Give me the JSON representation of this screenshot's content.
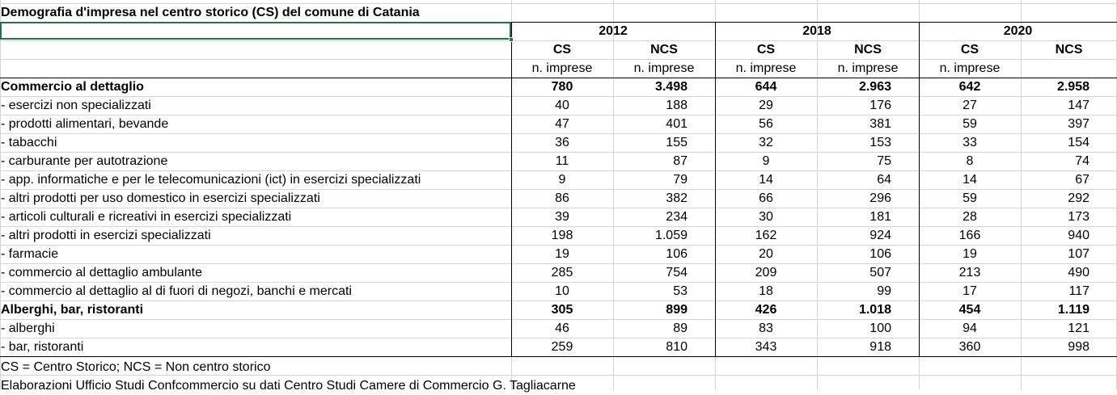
{
  "title": "Demografia d'impresa nel centro storico (CS) del comune di Catania",
  "years": [
    "2012",
    "2018",
    "2020"
  ],
  "col_headers": [
    "CS",
    "NCS",
    "CS",
    "NCS",
    "CS",
    "NCS"
  ],
  "col_units": [
    "n. imprese",
    "n. imprese",
    "n. imprese",
    "n. imprese",
    "n. imprese",
    ""
  ],
  "rows": [
    {
      "label": "Commercio al dettaglio",
      "bold": true,
      "values": [
        "780",
        "3.498",
        "644",
        "2.963",
        "642",
        "2.958"
      ]
    },
    {
      "label": "- esercizi non specializzati",
      "bold": false,
      "values": [
        "40",
        "188",
        "29",
        "176",
        "27",
        "147"
      ]
    },
    {
      "label": "- prodotti alimentari, bevande",
      "bold": false,
      "values": [
        "47",
        "401",
        "56",
        "381",
        "59",
        "397"
      ]
    },
    {
      "label": "- tabacchi",
      "bold": false,
      "values": [
        "36",
        "155",
        "32",
        "153",
        "33",
        "154"
      ]
    },
    {
      "label": "- carburante per autotrazione",
      "bold": false,
      "values": [
        "11",
        "87",
        "9",
        "75",
        "8",
        "74"
      ]
    },
    {
      "label": "- app. informatiche e per le telecomunicazioni (ict) in esercizi specializzati",
      "bold": false,
      "values": [
        "9",
        "79",
        "14",
        "64",
        "14",
        "67"
      ]
    },
    {
      "label": "- altri prodotti per uso domestico in esercizi specializzati",
      "bold": false,
      "values": [
        "86",
        "382",
        "66",
        "296",
        "59",
        "292"
      ]
    },
    {
      "label": "- articoli culturali e ricreativi in esercizi specializzati",
      "bold": false,
      "values": [
        "39",
        "234",
        "30",
        "181",
        "28",
        "173"
      ]
    },
    {
      "label": "- altri prodotti in esercizi specializzati",
      "bold": false,
      "values": [
        "198",
        "1.059",
        "162",
        "924",
        "166",
        "940"
      ]
    },
    {
      "label": "- farmacie",
      "bold": false,
      "values": [
        "19",
        "106",
        "20",
        "106",
        "19",
        "107"
      ]
    },
    {
      "label": "- commercio al dettaglio ambulante",
      "bold": false,
      "values": [
        "285",
        "754",
        "209",
        "507",
        "213",
        "490"
      ]
    },
    {
      "label": "- commercio al dettaglio al di fuori di negozi, banchi e mercati",
      "bold": false,
      "values": [
        "10",
        "53",
        "18",
        "99",
        "17",
        "117"
      ]
    },
    {
      "label": "Alberghi, bar, ristoranti",
      "bold": true,
      "values": [
        "305",
        "899",
        "426",
        "1.018",
        "454",
        "1.119"
      ]
    },
    {
      "label": "- alberghi",
      "bold": false,
      "values": [
        "46",
        "89",
        "83",
        "100",
        "94",
        "121"
      ]
    },
    {
      "label": "- bar, ristoranti",
      "bold": false,
      "values": [
        "259",
        "810",
        "343",
        "918",
        "360",
        "998"
      ]
    }
  ],
  "notes": [
    "CS = Centro Storico; NCS = Non centro storico",
    "Elaborazioni Ufficio Studi Confcommercio su dati Centro Studi Camere di Commercio G. Tagliacarne"
  ]
}
